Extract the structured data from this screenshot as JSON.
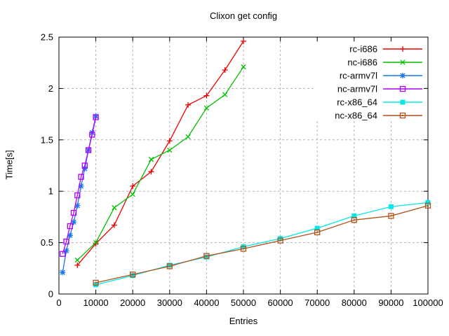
{
  "chart_data": {
    "type": "line",
    "title": "Clixon get config",
    "xlabel": "Entries",
    "ylabel": "Time[s]",
    "xlim": [
      0,
      100000
    ],
    "ylim": [
      0,
      2.5
    ],
    "xticks": [
      0,
      10000,
      20000,
      30000,
      40000,
      50000,
      60000,
      70000,
      80000,
      90000,
      100000
    ],
    "yticks": [
      0,
      0.5,
      1,
      1.5,
      2,
      2.5
    ],
    "grid": true,
    "legend_position": "top-right",
    "colors": {
      "grid": "#b3b3b3",
      "border": "#000000",
      "background": "#ffffff"
    },
    "series": [
      {
        "name": "rc-i686",
        "color": "#ee0000",
        "marker": "plus",
        "x": [
          5000,
          10000,
          15000,
          20000,
          25000,
          30000,
          35000,
          40000,
          45000,
          50000
        ],
        "y": [
          0.28,
          0.49,
          0.67,
          1.05,
          1.19,
          1.49,
          1.84,
          1.93,
          2.18,
          2.46
        ]
      },
      {
        "name": "nc-i686",
        "color": "#00c000",
        "marker": "cross",
        "x": [
          5000,
          10000,
          15000,
          20000,
          25000,
          30000,
          35000,
          40000,
          45000,
          50000
        ],
        "y": [
          0.33,
          0.5,
          0.84,
          0.97,
          1.31,
          1.4,
          1.53,
          1.81,
          1.94,
          2.21
        ]
      },
      {
        "name": "rc-armv7l",
        "color": "#1874e8",
        "marker": "asterisk",
        "x": [
          1000,
          2000,
          3000,
          4000,
          5000,
          6000,
          7000,
          8000,
          9000,
          10000
        ],
        "y": [
          0.21,
          0.42,
          0.57,
          0.7,
          0.86,
          1.05,
          1.22,
          1.4,
          1.57,
          1.73
        ]
      },
      {
        "name": "nc-armv7l",
        "color": "#b000ff",
        "marker": "square-open",
        "x": [
          1000,
          2000,
          3000,
          4000,
          5000,
          6000,
          7000,
          8000,
          9000,
          10000
        ],
        "y": [
          0.39,
          0.51,
          0.66,
          0.79,
          0.96,
          1.14,
          1.25,
          1.4,
          1.55,
          1.72
        ]
      },
      {
        "name": "rc-x86_64",
        "color": "#00e8e8",
        "marker": "square-filled",
        "x": [
          10000,
          20000,
          30000,
          40000,
          50000,
          60000,
          70000,
          80000,
          90000,
          100000
        ],
        "y": [
          0.09,
          0.18,
          0.28,
          0.36,
          0.46,
          0.54,
          0.64,
          0.76,
          0.85,
          0.89
        ]
      },
      {
        "name": "nc-x86_64",
        "color": "#b0521a",
        "marker": "square-dot",
        "x": [
          10000,
          20000,
          30000,
          40000,
          50000,
          60000,
          70000,
          80000,
          90000,
          100000
        ],
        "y": [
          0.11,
          0.19,
          0.27,
          0.37,
          0.44,
          0.52,
          0.6,
          0.72,
          0.76,
          0.86
        ]
      }
    ]
  }
}
